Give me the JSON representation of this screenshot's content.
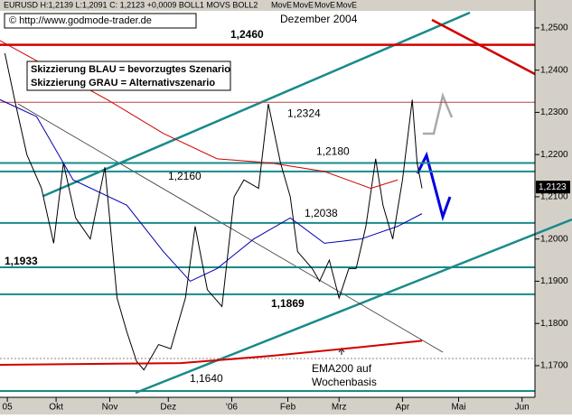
{
  "chart_data": {
    "type": "line",
    "header": "EURUSD H:1,2139 L:1,2091 C: 1,2123 +0,0009 BOLL1 MOVS BOLL2",
    "indicators": [
      {
        "name": "MovE",
        "color": "#0000c0"
      },
      {
        "name": "MovE",
        "color": "#c00000"
      },
      {
        "name": "MovE",
        "color": "#800000"
      },
      {
        "name": "MovE",
        "color": "#c00000"
      }
    ],
    "annotations": [
      "© http://www.godmode-trader.de",
      "Dezember 2004",
      "Skizzierung BLAU = bevorzugtes Szenario",
      "Skizzierung GRAU = Alternativszenario",
      "EMA200 auf",
      "Wochenbasis"
    ],
    "xlim": [
      0,
      219.3
    ],
    "ylim": [
      1.1625,
      1.2549
    ],
    "xticks": [
      {
        "value": 3,
        "label": "05"
      },
      {
        "value": 23,
        "label": "Okt"
      },
      {
        "value": 45,
        "label": "Nov"
      },
      {
        "value": 69,
        "label": "Dez"
      },
      {
        "value": 95,
        "label": "'06"
      },
      {
        "value": 118,
        "label": "Feb"
      },
      {
        "value": 139,
        "label": "Mrz"
      },
      {
        "value": 165,
        "label": "Apr"
      },
      {
        "value": 188,
        "label": "Mai"
      },
      {
        "value": 214,
        "label": "Jun"
      }
    ],
    "yticks": [
      {
        "value": 1.25,
        "label": "1,2500"
      },
      {
        "value": 1.24,
        "label": "1,2400"
      },
      {
        "value": 1.23,
        "label": "1,2300"
      },
      {
        "value": 1.22,
        "label": "1,2200"
      },
      {
        "value": 1.21,
        "label": "1,2100"
      },
      {
        "value": 1.2,
        "label": "1,2000"
      },
      {
        "value": 1.19,
        "label": "1,1900"
      },
      {
        "value": 1.18,
        "label": "1,1800"
      },
      {
        "value": 1.17,
        "label": "1,1700"
      }
    ],
    "last_price": {
      "value": 1.2123,
      "label": "1,2123"
    },
    "levels": [
      {
        "value": 1.246,
        "label": "1,2460",
        "color": "#d00000"
      },
      {
        "value": 1.2324,
        "label": "1,2324",
        "color": "#c04040"
      },
      {
        "value": 1.218,
        "label": "1,2180",
        "color": "#1a8a8a"
      },
      {
        "value": 1.216,
        "label": "1,2160",
        "color": "#1a8a8a"
      },
      {
        "value": 1.2038,
        "label": "1,2038",
        "color": "#1a8a8a"
      },
      {
        "value": 1.1933,
        "label": "1,1933",
        "color": "#1a8a8a"
      },
      {
        "value": 1.1869,
        "label": "1,1869",
        "color": "#1a8a8a"
      },
      {
        "value": 1.164,
        "label": "1,1640",
        "color": "#1a8a8a"
      }
    ],
    "series": [
      {
        "color": "#000000",
        "x": [
          2,
          6,
          11,
          17,
          22,
          26,
          31,
          37,
          43,
          48,
          52,
          56,
          59,
          65,
          70,
          76,
          80,
          85,
          91,
          96,
          100,
          106,
          110,
          115,
          119,
          122,
          128,
          131,
          135,
          139,
          143,
          146,
          150,
          154,
          157,
          161,
          165,
          169,
          171,
          173
        ],
        "values": [
          1.244,
          1.233,
          1.22,
          1.212,
          1.199,
          1.218,
          1.205,
          1.2,
          1.217,
          1.186,
          1.178,
          1.171,
          1.169,
          1.175,
          1.174,
          1.186,
          1.203,
          1.188,
          1.184,
          1.21,
          1.214,
          1.212,
          1.232,
          1.218,
          1.21,
          1.197,
          1.193,
          1.19,
          1.195,
          1.186,
          1.193,
          1.193,
          1.203,
          1.219,
          1.208,
          1.2,
          1.214,
          1.233,
          1.218,
          1.212
        ]
      },
      {
        "color": "#d00000",
        "x": [
          0,
          22,
          44,
          67,
          89,
          111,
          133,
          152,
          163
        ],
        "values": [
          1.247,
          1.24,
          1.233,
          1.225,
          1.219,
          1.218,
          1.216,
          1.212,
          1.214
        ]
      },
      {
        "color": "#0000b0",
        "x": [
          0,
          15,
          30,
          52,
          67,
          78,
          89,
          104,
          119,
          133,
          148,
          163,
          173
        ],
        "values": [
          1.233,
          1.229,
          1.214,
          1.208,
          1.197,
          1.19,
          1.193,
          1.2,
          1.205,
          1.199,
          1.2,
          1.203,
          1.206
        ]
      },
      {
        "color": "#d00000",
        "x": [
          0,
          74,
          111,
          148,
          173
        ],
        "values": [
          1.1702,
          1.1706,
          1.1723,
          1.1744,
          1.1759
        ]
      }
    ]
  }
}
